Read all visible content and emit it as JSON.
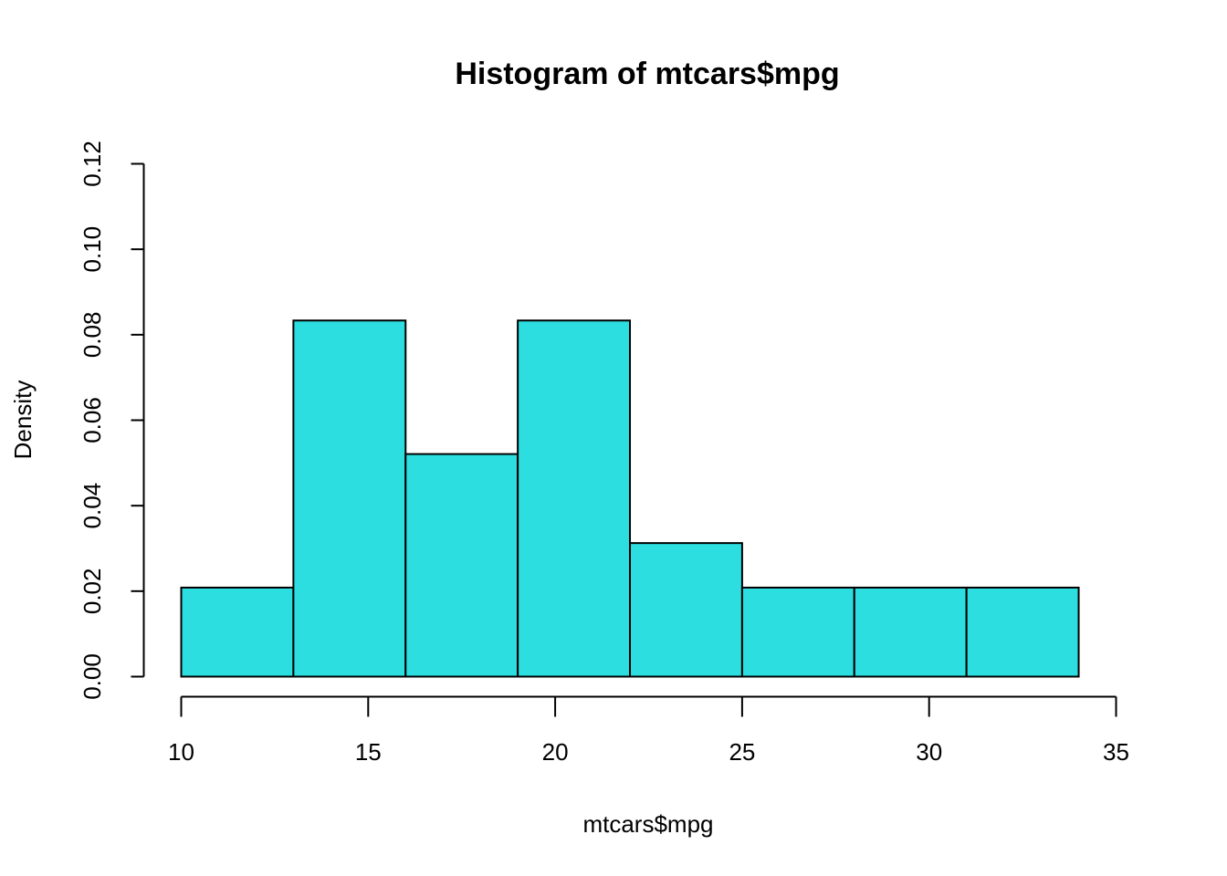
{
  "chart_data": {
    "type": "bar",
    "title": "Histogram of mtcars$mpg",
    "xlabel": "mtcars$mpg",
    "ylabel": "Density",
    "xlim": [
      10,
      35
    ],
    "ylim": [
      0,
      0.12
    ],
    "x_ticks": [
      "10",
      "15",
      "20",
      "25",
      "30",
      "35"
    ],
    "y_ticks": [
      "0.00",
      "0.02",
      "0.04",
      "0.06",
      "0.08",
      "0.10",
      "0.12"
    ],
    "bins": [
      {
        "start": 10,
        "end": 13,
        "density": 0.02083
      },
      {
        "start": 13,
        "end": 16,
        "density": 0.08333
      },
      {
        "start": 16,
        "end": 19,
        "density": 0.05208
      },
      {
        "start": 19,
        "end": 22,
        "density": 0.08333
      },
      {
        "start": 22,
        "end": 25,
        "density": 0.03125
      },
      {
        "start": 25,
        "end": 28,
        "density": 0.02083
      },
      {
        "start": 28,
        "end": 31,
        "density": 0.02083
      },
      {
        "start": 31,
        "end": 34,
        "density": 0.02083
      }
    ],
    "bar_color": "#2cdee0",
    "grid": false,
    "legend": false
  }
}
